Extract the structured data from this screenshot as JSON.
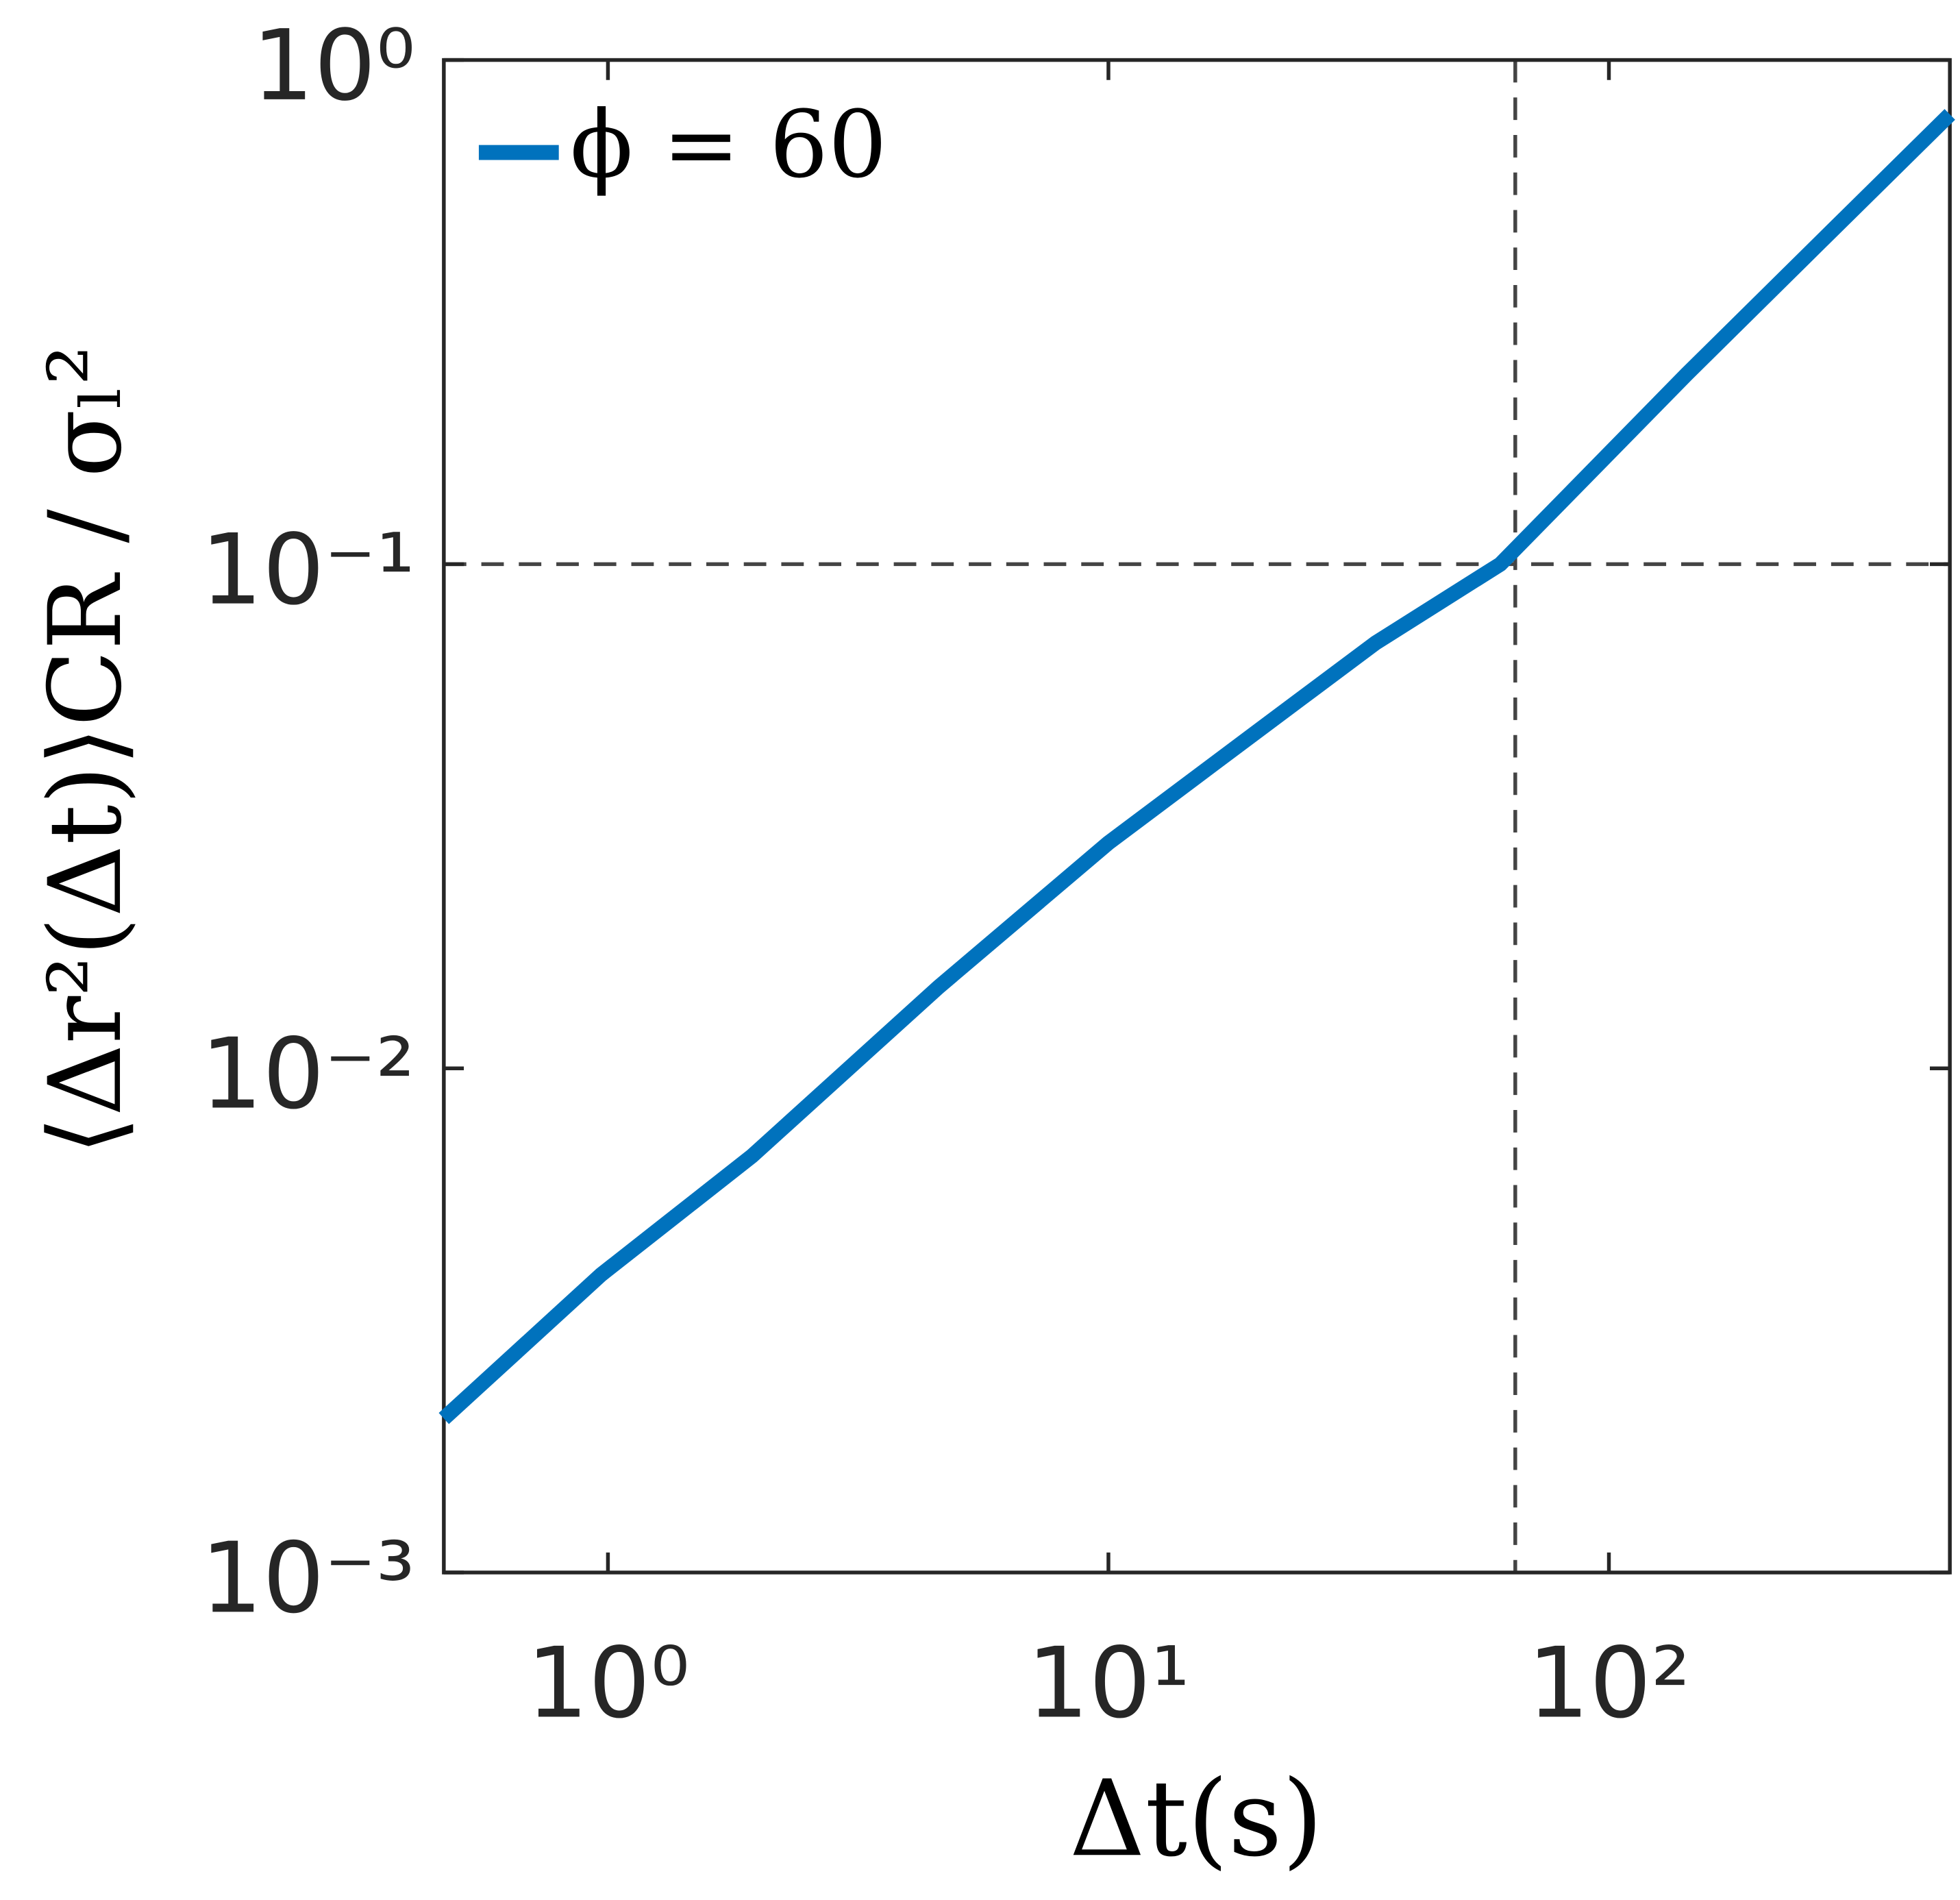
{
  "chart_data": {
    "type": "line",
    "xlabel": "Δt(s)",
    "ylabel": "⟨Δr²(Δt)⟩CR / σₗ²",
    "x": [
      0.47,
      0.97,
      1.94,
      4.58,
      10,
      19.2,
      34.2,
      60.7,
      143,
      255,
      480
    ],
    "series": [
      {
        "name": "ϕ = 60",
        "color": "#0072bd",
        "values": [
          0.00202,
          0.0039,
          0.0067,
          0.0145,
          0.028,
          0.0455,
          0.0698,
          0.1,
          0.238,
          0.42,
          0.78
        ]
      }
    ],
    "xlim": [
      0.47,
      480
    ],
    "ylim": [
      0.001,
      1
    ],
    "xticks": [
      {
        "value": 1,
        "label": "10⁰"
      },
      {
        "value": 10,
        "label": "10¹"
      },
      {
        "value": 100,
        "label": "10²"
      }
    ],
    "yticks": [
      {
        "value": 0.001,
        "label": "10⁻³"
      },
      {
        "value": 0.01,
        "label": "10⁻²"
      },
      {
        "value": 0.1,
        "label": "10⁻¹"
      },
      {
        "value": 1,
        "label": "10⁰"
      }
    ],
    "xscale": "log",
    "yscale": "log",
    "grid": false,
    "legend": "upper left",
    "reference_lines": {
      "x": 65,
      "y": 0.1
    }
  }
}
